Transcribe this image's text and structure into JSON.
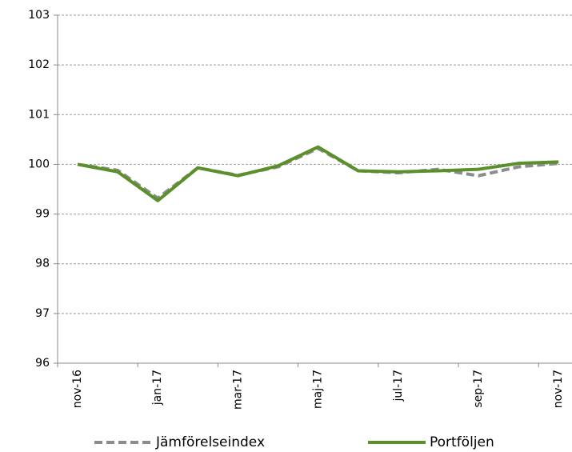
{
  "chart_data": {
    "type": "line",
    "categories": [
      "nov-16",
      null,
      "jan-17",
      null,
      "mar-17",
      null,
      "maj-17",
      null,
      "jul-17",
      null,
      "sep-17",
      null,
      "nov-17"
    ],
    "series": [
      {
        "name": "Jämförelseindex",
        "color": "#8c8c8c",
        "dashed": true,
        "values": [
          100,
          99.88,
          99.32,
          99.93,
          99.78,
          99.95,
          100.32,
          99.87,
          99.83,
          99.9,
          99.77,
          99.95,
          100.02
        ]
      },
      {
        "name": "Portföljen",
        "color": "#5a8f29",
        "dashed": false,
        "values": [
          100,
          99.85,
          99.27,
          99.93,
          99.77,
          99.97,
          100.35,
          99.87,
          99.85,
          99.87,
          99.9,
          100.02,
          100.05
        ]
      }
    ],
    "ylim": [
      96,
      103
    ],
    "yticks": [
      96,
      97,
      98,
      99,
      100,
      101,
      102,
      103
    ],
    "grid": true,
    "legend": "bottom"
  }
}
